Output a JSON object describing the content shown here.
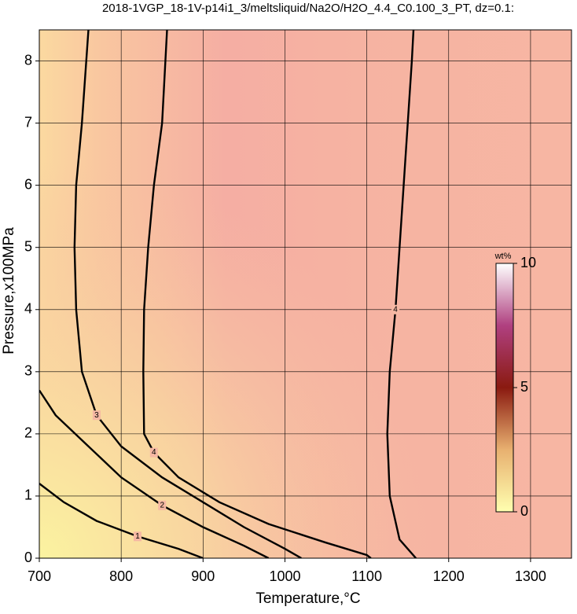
{
  "chart_data": {
    "type": "contour",
    "title": "2018-1VGP_18-1V-p14i1_3/meltsliquid/Na2O/H2O_4.4_C0.100_3_PT, dz=0.1:",
    "xlabel": "Temperature,°C",
    "ylabel": "Pressure,x100MPa",
    "xlim": [
      700,
      1350
    ],
    "ylim": [
      0,
      8.5
    ],
    "xticks": [
      700,
      800,
      900,
      1000,
      1100,
      1200,
      1300
    ],
    "yticks": [
      0,
      1,
      2,
      3,
      4,
      5,
      6,
      7,
      8
    ],
    "grid": true,
    "contours": [
      {
        "level": 1,
        "x": [
          700,
          730,
          770,
          820,
          870,
          900
        ],
        "y": [
          1.2,
          0.9,
          0.6,
          0.35,
          0.15,
          0
        ]
      },
      {
        "level": 2,
        "x": [
          700,
          720,
          760,
          800,
          850,
          900,
          950,
          980
        ],
        "y": [
          2.7,
          2.3,
          1.8,
          1.3,
          0.85,
          0.5,
          0.2,
          0
        ]
      },
      {
        "level": 3,
        "x": [
          760,
          752,
          745,
          743,
          745,
          752,
          770,
          800,
          850,
          900,
          950,
          1000,
          1020
        ],
        "y": [
          8.5,
          7,
          6,
          5,
          4,
          3,
          2.3,
          1.8,
          1.3,
          0.9,
          0.5,
          0.15,
          0
        ]
      },
      {
        "level": 4,
        "x": [
          856,
          850,
          840,
          833,
          828,
          827,
          828,
          840,
          870,
          920,
          980,
          1050,
          1100,
          1105
        ],
        "y": [
          8.5,
          7,
          6,
          5,
          4,
          3,
          2,
          1.7,
          1.3,
          0.9,
          0.55,
          0.25,
          0.05,
          0
        ]
      },
      {
        "level": 4,
        "x": [
          1160,
          1140,
          1128,
          1125,
          1128,
          1135,
          1140,
          1145,
          1150,
          1155,
          1157
        ],
        "y": [
          0,
          0.3,
          1,
          2,
          3,
          4,
          5,
          6,
          7,
          8,
          8.5
        ]
      }
    ],
    "colorbar": {
      "label": "wt%",
      "lim": [
        0,
        10
      ],
      "ticks": [
        0,
        5,
        10
      ]
    }
  }
}
